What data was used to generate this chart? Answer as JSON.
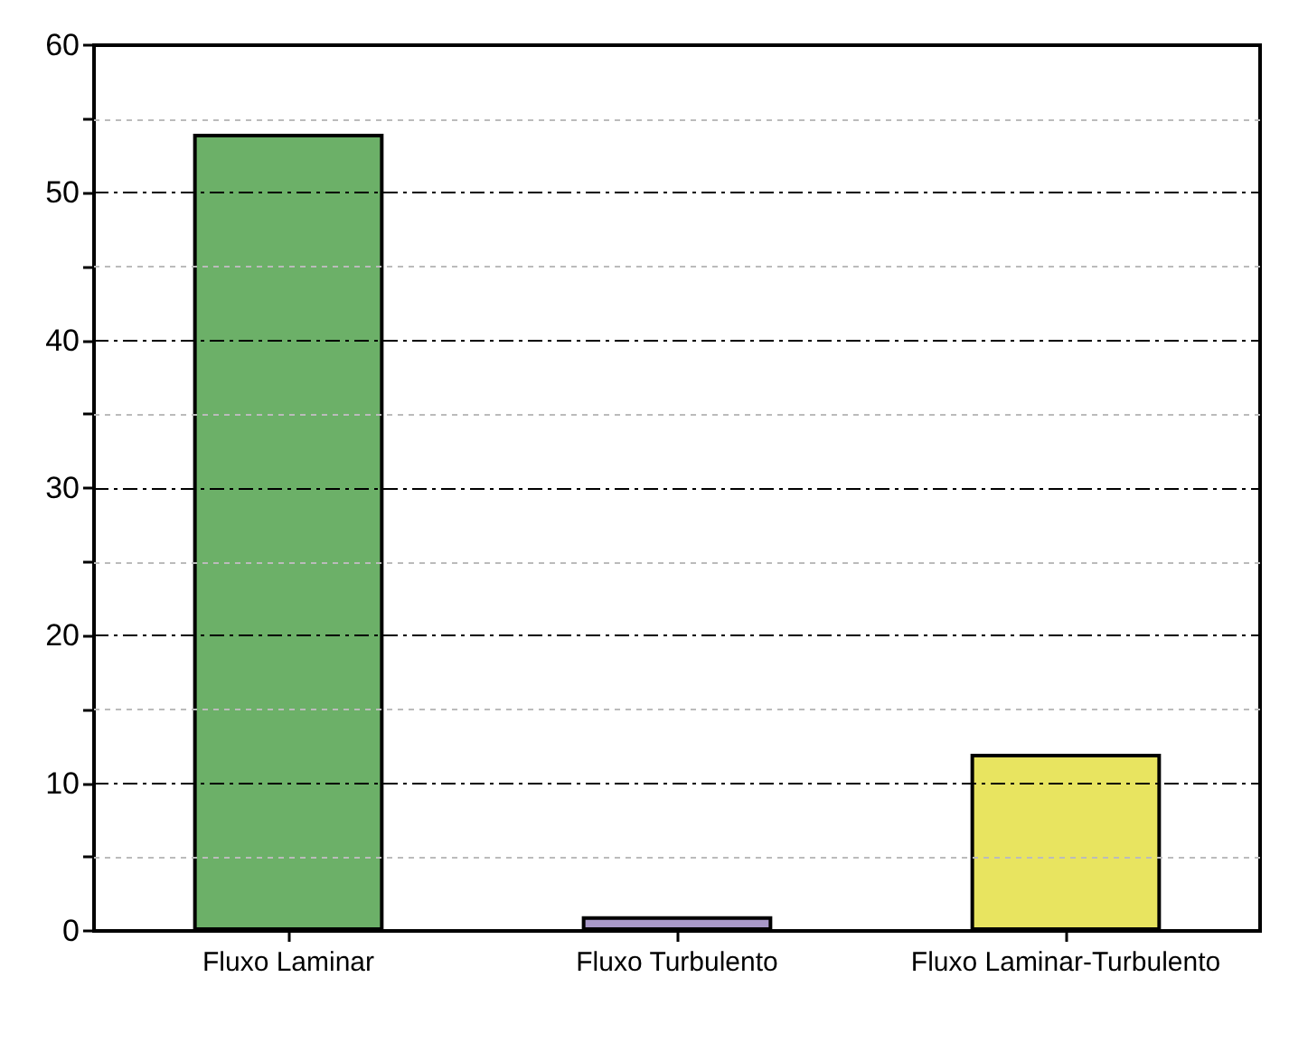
{
  "chart_data": {
    "type": "bar",
    "categories": [
      "Fluxo Laminar",
      "Fluxo Turbulento",
      "Fluxo Laminar-Turbulento"
    ],
    "values": [
      54,
      1,
      12
    ],
    "colors": [
      "#6cb068",
      "#a898c8",
      "#e8e460"
    ],
    "ylim": [
      0,
      60
    ],
    "yticks": [
      0,
      {
        "value": 5,
        "label": null
      },
      10,
      {
        "value": 15,
        "label": null
      },
      20,
      {
        "value": 25,
        "label": null
      },
      30,
      {
        "value": 35,
        "label": null
      },
      40,
      {
        "value": 45,
        "label": null
      },
      50,
      {
        "value": 55,
        "label": null
      },
      60
    ],
    "grid": "y"
  }
}
